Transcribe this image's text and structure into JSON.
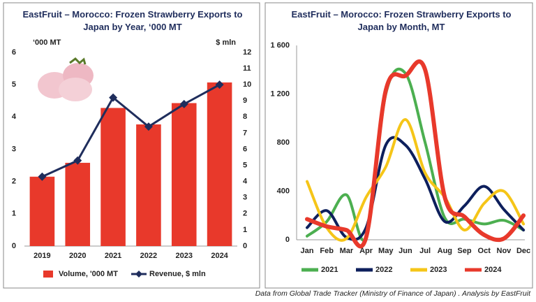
{
  "chart_data": [
    {
      "type": "bar",
      "title": "EastFruit – Morocco: Frozen Strawberry Exports to Japan by Year, ‘000 MT",
      "y_label": "‘000 MT",
      "y2_label": "$ mln",
      "categories": [
        "2019",
        "2020",
        "2021",
        "2022",
        "2023",
        "2024"
      ],
      "series": [
        {
          "name": "Volume, '000 MT",
          "color": "#e8392b",
          "type": "bar",
          "values": [
            2.15,
            2.58,
            4.28,
            3.77,
            4.43,
            5.07
          ]
        },
        {
          "name": "Revenue, $ mln",
          "color": "#1f2d5c",
          "type": "line",
          "axis": "y2",
          "values": [
            4.3,
            5.3,
            9.2,
            7.4,
            8.8,
            10.0
          ]
        }
      ],
      "ylim": [
        0,
        6
      ],
      "yticks": [
        0,
        1,
        2,
        3,
        4,
        5,
        6
      ],
      "y2lim": [
        0,
        12
      ],
      "y2ticks": [
        0,
        1,
        2,
        3,
        4,
        5,
        6,
        7,
        8,
        9,
        10,
        11,
        12
      ]
    },
    {
      "type": "line",
      "title": "EastFruit – Morocco: Frozen Strawberry Exports to Japan by Month, MT",
      "categories": [
        "Jan",
        "Feb",
        "Mar",
        "Apr",
        "May",
        "Jun",
        "Jul",
        "Aug",
        "Sep",
        "Oct",
        "Nov",
        "Dec"
      ],
      "series": [
        {
          "name": "2021",
          "color": "#4caf50",
          "values": [
            30,
            150,
            370,
            20,
            1200,
            1370,
            800,
            180,
            170,
            130,
            160,
            80
          ]
        },
        {
          "name": "2022",
          "color": "#0d1f5c",
          "values": [
            100,
            240,
            20,
            100,
            780,
            780,
            500,
            150,
            280,
            440,
            250,
            80
          ]
        },
        {
          "name": "2023",
          "color": "#f5c518",
          "values": [
            480,
            100,
            10,
            350,
            600,
            990,
            550,
            350,
            80,
            300,
            400,
            130
          ]
        },
        {
          "name": "2024",
          "color": "#e8392b",
          "values": [
            170,
            110,
            80,
            20,
            1230,
            1350,
            1400,
            350,
            190,
            40,
            10,
            200
          ]
        }
      ],
      "ylim": [
        0,
        1600
      ],
      "yticks": [
        0,
        400,
        800,
        {
          "value": 1200,
          "label": "1 200"
        },
        {
          "value": 1600,
          "label": "1 600"
        }
      ]
    }
  ],
  "source": "Data from Global Trade Tracker (Ministry of Finance of Japan) . Analysis by EastFruit"
}
